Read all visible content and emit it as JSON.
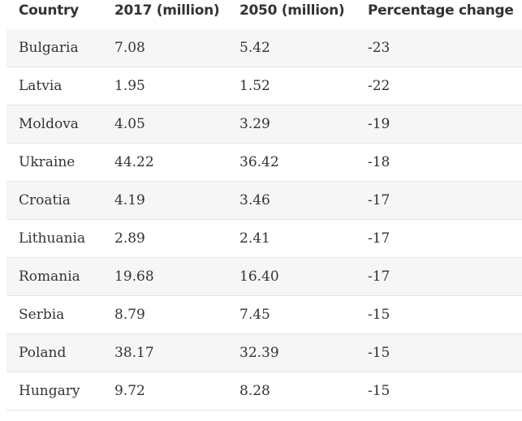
{
  "table": {
    "header": [
      "Country",
      "2017 (million)",
      "2050 (million)",
      "Percentage change"
    ],
    "rows": [
      [
        "Bulgaria",
        "7.08",
        "5.42",
        "-23"
      ],
      [
        "Latvia",
        "1.95",
        "1.52",
        "-22"
      ],
      [
        "Moldova",
        "4.05",
        "3.29",
        "-19"
      ],
      [
        "Ukraine",
        "44.22",
        "36.42",
        "-18"
      ],
      [
        "Croatia",
        "4.19",
        "3.46",
        "-17"
      ],
      [
        "Lithuania",
        "2.89",
        "2.41",
        "-17"
      ],
      [
        "Romania",
        "19.68",
        "16.40",
        "-17"
      ],
      [
        "Serbia",
        "8.79",
        "7.45",
        "-15"
      ],
      [
        "Poland",
        "38.17",
        "32.39",
        "-15"
      ],
      [
        "Hungary",
        "9.72",
        "8.28",
        "-15"
      ]
    ]
  }
}
